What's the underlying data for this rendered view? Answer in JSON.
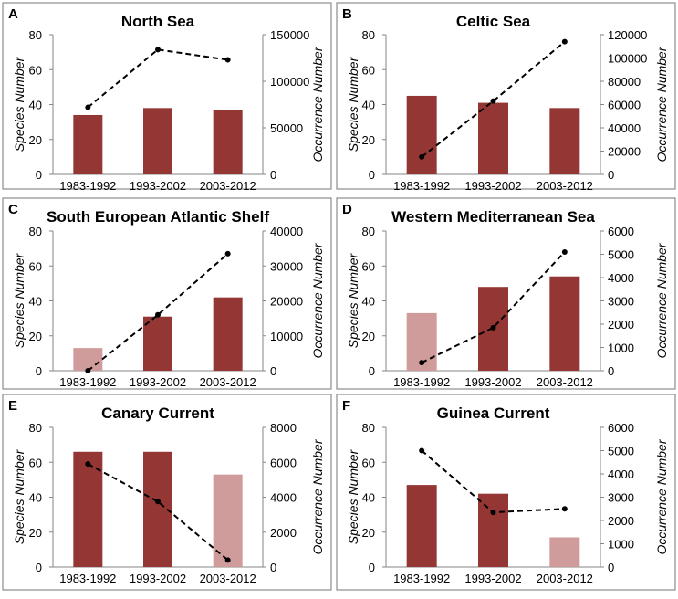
{
  "colors": {
    "bar_dark": "#943634",
    "bar_light": "#D09C9B"
  },
  "chart_data": [
    {
      "type": "bar",
      "panel_letter": "A",
      "title": "North Sea",
      "categories": [
        "1983-1992",
        "1993-2002",
        "2003-2012"
      ],
      "ylabel": "Species Number",
      "y2label": "Occurrence Number",
      "ylim": [
        0,
        80
      ],
      "yticks": [
        0,
        20,
        40,
        60,
        80
      ],
      "y2lim": [
        0,
        150000
      ],
      "y2ticks": [
        0,
        50000,
        100000,
        150000
      ],
      "series": [
        {
          "name": "Species Number",
          "axis": "left",
          "type": "bar",
          "values": [
            34,
            38,
            37
          ],
          "shade": [
            "dark",
            "dark",
            "dark"
          ]
        },
        {
          "name": "Occurrence Number",
          "axis": "right",
          "type": "line",
          "values": [
            72000,
            134000,
            123000
          ]
        }
      ]
    },
    {
      "type": "bar",
      "panel_letter": "B",
      "title": "Celtic Sea",
      "categories": [
        "1983-1992",
        "1993-2002",
        "2003-2012"
      ],
      "ylabel": "Species Number",
      "y2label": "Occurrence Number",
      "ylim": [
        0,
        80
      ],
      "yticks": [
        0,
        20,
        40,
        60,
        80
      ],
      "y2lim": [
        0,
        120000
      ],
      "y2ticks": [
        0,
        20000,
        40000,
        60000,
        80000,
        100000,
        120000
      ],
      "series": [
        {
          "name": "Species Number",
          "axis": "left",
          "type": "bar",
          "values": [
            45,
            41,
            38
          ],
          "shade": [
            "dark",
            "dark",
            "dark"
          ]
        },
        {
          "name": "Occurrence Number",
          "axis": "right",
          "type": "line",
          "values": [
            15000,
            63000,
            114000
          ]
        }
      ]
    },
    {
      "type": "bar",
      "panel_letter": "C",
      "title": "South European Atlantic Shelf",
      "categories": [
        "1983-1992",
        "1993-2002",
        "2003-2012"
      ],
      "ylabel": "Species Number",
      "y2label": "Occurrence Number",
      "ylim": [
        0,
        80
      ],
      "yticks": [
        0,
        20,
        40,
        60,
        80
      ],
      "y2lim": [
        0,
        40000
      ],
      "y2ticks": [
        0,
        10000,
        20000,
        30000,
        40000
      ],
      "series": [
        {
          "name": "Species Number",
          "axis": "left",
          "type": "bar",
          "values": [
            13,
            31,
            42
          ],
          "shade": [
            "light",
            "dark",
            "dark"
          ]
        },
        {
          "name": "Occurrence Number",
          "axis": "right",
          "type": "line",
          "values": [
            0,
            16000,
            33500
          ]
        }
      ]
    },
    {
      "type": "bar",
      "panel_letter": "D",
      "title": "Western Mediterranean Sea",
      "categories": [
        "1983-1992",
        "1993-2002",
        "2003-2012"
      ],
      "ylabel": "Species Number",
      "y2label": "Occurrence Number",
      "ylim": [
        0,
        80
      ],
      "yticks": [
        0,
        20,
        40,
        60,
        80
      ],
      "y2lim": [
        0,
        6000
      ],
      "y2ticks": [
        0,
        1000,
        2000,
        3000,
        4000,
        5000,
        6000
      ],
      "series": [
        {
          "name": "Species Number",
          "axis": "left",
          "type": "bar",
          "values": [
            33,
            48,
            54
          ],
          "shade": [
            "light",
            "dark",
            "dark"
          ]
        },
        {
          "name": "Occurrence Number",
          "axis": "right",
          "type": "line",
          "values": [
            350,
            1850,
            5100
          ]
        }
      ]
    },
    {
      "type": "bar",
      "panel_letter": "E",
      "title": "Canary Current",
      "categories": [
        "1983-1992",
        "1993-2002",
        "2003-2012"
      ],
      "ylabel": "Species Number",
      "y2label": "Occurrence Number",
      "ylim": [
        0,
        80
      ],
      "yticks": [
        0,
        20,
        40,
        60,
        80
      ],
      "y2lim": [
        0,
        8000
      ],
      "y2ticks": [
        0,
        2000,
        4000,
        6000,
        8000
      ],
      "series": [
        {
          "name": "Species Number",
          "axis": "left",
          "type": "bar",
          "values": [
            66,
            66,
            53
          ],
          "shade": [
            "dark",
            "dark",
            "light"
          ]
        },
        {
          "name": "Occurrence Number",
          "axis": "right",
          "type": "line",
          "values": [
            5900,
            3750,
            400
          ]
        }
      ]
    },
    {
      "type": "bar",
      "panel_letter": "F",
      "title": "Guinea Current",
      "categories": [
        "1983-1992",
        "1993-2002",
        "2003-2012"
      ],
      "ylabel": "Species Number",
      "y2label": "Occurrence Number",
      "ylim": [
        0,
        80
      ],
      "yticks": [
        0,
        20,
        40,
        60,
        80
      ],
      "y2lim": [
        0,
        6000
      ],
      "y2ticks": [
        0,
        1000,
        2000,
        3000,
        4000,
        5000,
        6000
      ],
      "series": [
        {
          "name": "Species Number",
          "axis": "left",
          "type": "bar",
          "values": [
            47,
            42,
            17
          ],
          "shade": [
            "dark",
            "dark",
            "light"
          ]
        },
        {
          "name": "Occurrence Number",
          "axis": "right",
          "type": "line",
          "values": [
            5000,
            2350,
            2500
          ]
        }
      ]
    }
  ]
}
